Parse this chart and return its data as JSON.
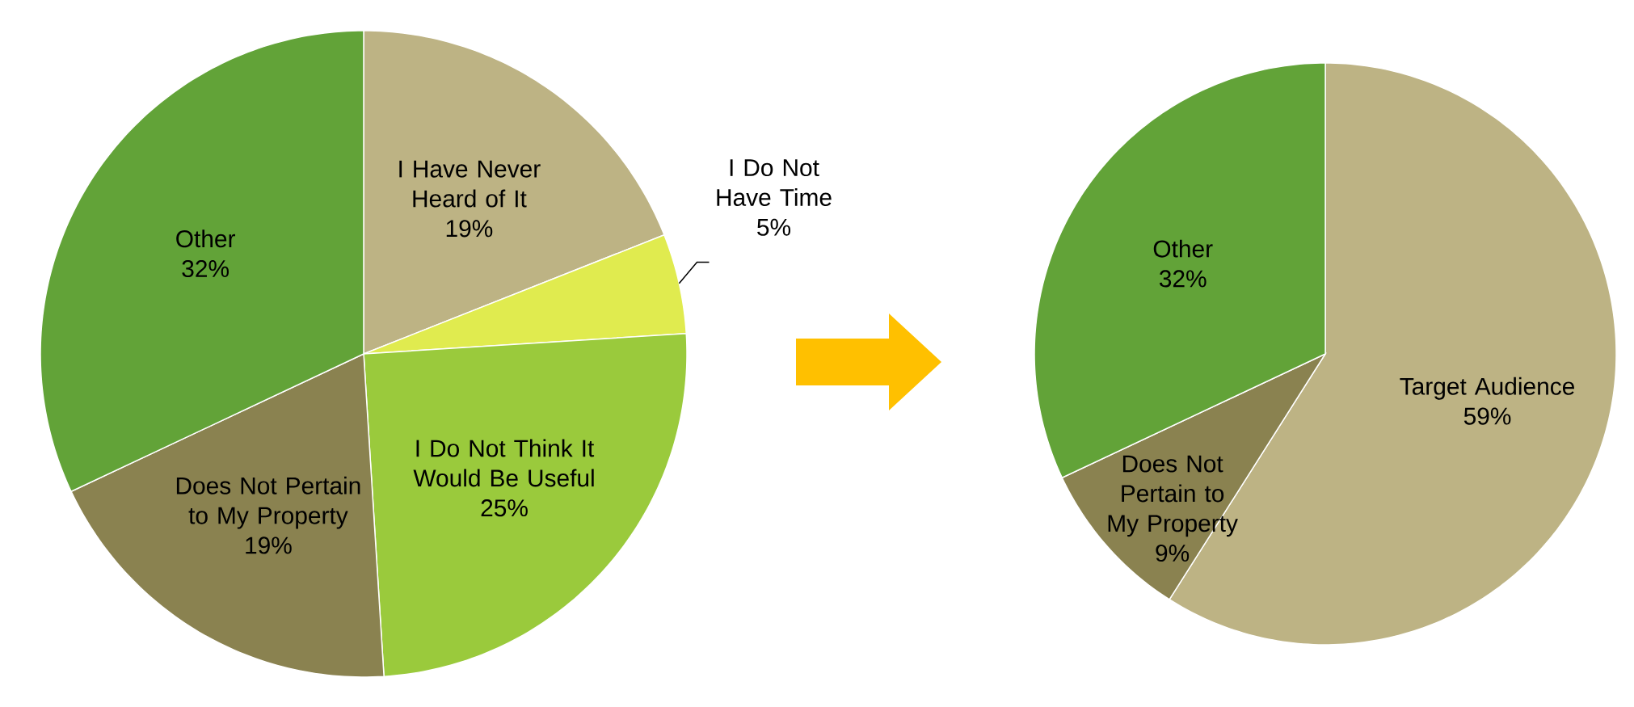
{
  "chart_data": [
    {
      "type": "pie",
      "categories": [
        "I Have Never Heard of It",
        "I Do Not Have Time",
        "I Do Not Think It Would Be Useful",
        "Does Not Pertain to My Property",
        "Other"
      ],
      "values": [
        19,
        5,
        25,
        19,
        32
      ],
      "value_labels": [
        "19%",
        "5%",
        "25%",
        "19%",
        "32%"
      ],
      "colors": [
        "#bdb384",
        "#e0eb4f",
        "#9aca3c",
        "#8a8250",
        "#62a338"
      ]
    },
    {
      "type": "pie",
      "categories": [
        "Target Audience",
        "Does Not Pertain to My Property",
        "Other"
      ],
      "values": [
        59,
        9,
        32
      ],
      "value_labels": [
        "59%",
        "9%",
        "32%"
      ],
      "colors": [
        "#bdb384",
        "#8a8250",
        "#62a338"
      ]
    }
  ]
}
